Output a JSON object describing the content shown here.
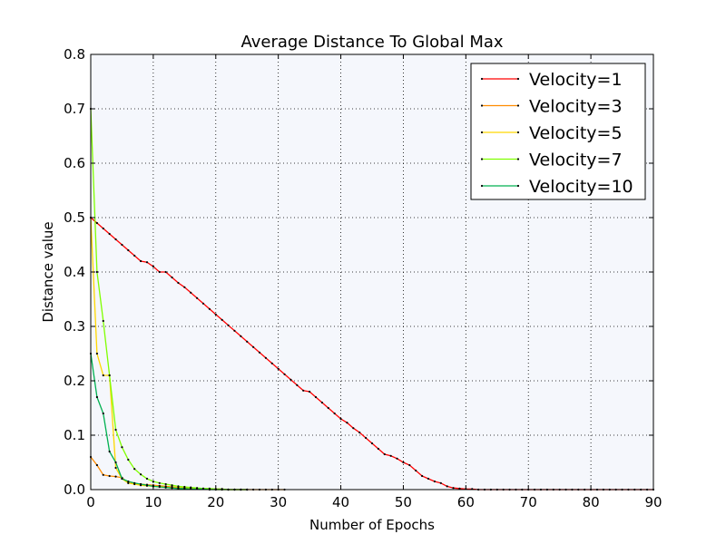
{
  "chart_data": {
    "type": "line",
    "title": "Average Distance To Global Max",
    "xlabel": "Number of Epochs",
    "ylabel": "Distance value",
    "xlim": [
      0,
      90
    ],
    "ylim": [
      0.0,
      0.8
    ],
    "xticks": [
      "0",
      "10",
      "20",
      "30",
      "40",
      "50",
      "60",
      "70",
      "80",
      "90"
    ],
    "yticks": [
      "0.0",
      "0.1",
      "0.2",
      "0.3",
      "0.4",
      "0.5",
      "0.6",
      "0.7",
      "0.8"
    ],
    "grid": true,
    "legend": "top-right",
    "plot_background": "#f5f7fc",
    "series": [
      {
        "name": "Velocity=1",
        "color": "#ff0000",
        "x": [
          0,
          1,
          2,
          3,
          4,
          5,
          6,
          7,
          8,
          9,
          10,
          11,
          12,
          13,
          14,
          15,
          16,
          17,
          18,
          19,
          20,
          21,
          22,
          23,
          24,
          25,
          26,
          27,
          28,
          29,
          30,
          31,
          32,
          33,
          34,
          35,
          36,
          37,
          38,
          39,
          40,
          41,
          42,
          43,
          44,
          45,
          46,
          47,
          48,
          49,
          50,
          51,
          52,
          53,
          54,
          55,
          56,
          57,
          58,
          59,
          60,
          61,
          62,
          63,
          64,
          65,
          66,
          67,
          68,
          69,
          70,
          71,
          72,
          73,
          74,
          75,
          76,
          77,
          78,
          79,
          80,
          81,
          82,
          83,
          84,
          85,
          86,
          87,
          88,
          89,
          90
        ],
        "y": [
          0.5,
          0.49,
          0.48,
          0.47,
          0.46,
          0.45,
          0.44,
          0.43,
          0.42,
          0.418,
          0.41,
          0.4,
          0.4,
          0.39,
          0.38,
          0.372,
          0.362,
          0.352,
          0.342,
          0.332,
          0.322,
          0.312,
          0.302,
          0.292,
          0.282,
          0.272,
          0.262,
          0.252,
          0.242,
          0.232,
          0.222,
          0.212,
          0.202,
          0.192,
          0.182,
          0.18,
          0.17,
          0.16,
          0.15,
          0.14,
          0.13,
          0.123,
          0.113,
          0.105,
          0.095,
          0.085,
          0.075,
          0.065,
          0.062,
          0.057,
          0.05,
          0.045,
          0.035,
          0.025,
          0.02,
          0.015,
          0.012,
          0.006,
          0.003,
          0.002,
          0.001,
          0.001,
          0.0,
          0.0,
          0.0,
          0.0,
          0.0,
          0.0,
          0.0,
          0.0,
          0.0,
          0.0,
          0.0,
          0.0,
          0.0,
          0.0,
          0.0,
          0.0,
          0.0,
          0.0,
          0.0,
          0.0,
          0.0,
          0.0,
          0.0,
          0.0,
          0.0,
          0.0,
          0.0,
          0.0,
          0.0
        ]
      },
      {
        "name": "Velocity=3",
        "color": "#ff8c00",
        "x": [
          0,
          1,
          2,
          3,
          4,
          5,
          6,
          7,
          8,
          9,
          10,
          11,
          12,
          13,
          14,
          15,
          16,
          17,
          18,
          19,
          20,
          21,
          22,
          23,
          24,
          25,
          26,
          27,
          28,
          29,
          30,
          31
        ],
        "y": [
          0.06,
          0.045,
          0.027,
          0.025,
          0.024,
          0.022,
          0.012,
          0.011,
          0.01,
          0.009,
          0.008,
          0.007,
          0.006,
          0.005,
          0.004,
          0.003,
          0.003,
          0.002,
          0.002,
          0.001,
          0.001,
          0.001,
          0.0,
          0.0,
          0.0,
          0.0,
          0.0,
          0.0,
          0.0,
          0.0,
          0.0,
          0.0
        ]
      },
      {
        "name": "Velocity=5",
        "color": "#ffd700",
        "x": [
          0,
          1,
          2,
          3,
          4,
          5,
          6,
          7,
          8,
          9,
          10,
          11,
          12,
          13,
          14,
          15,
          16,
          17,
          18,
          19,
          20,
          21,
          22,
          23,
          24,
          25
        ],
        "y": [
          0.5,
          0.25,
          0.21,
          0.21,
          0.04,
          0.02,
          0.012,
          0.01,
          0.008,
          0.007,
          0.006,
          0.005,
          0.004,
          0.003,
          0.003,
          0.002,
          0.002,
          0.001,
          0.001,
          0.001,
          0.0,
          0.0,
          0.0,
          0.0,
          0.0,
          0.0
        ]
      },
      {
        "name": "Velocity=7",
        "color": "#7fff00",
        "x": [
          0,
          1,
          2,
          3,
          4,
          5,
          6,
          7,
          8,
          9,
          10,
          11,
          12,
          13,
          14,
          15,
          16,
          17,
          18,
          19,
          20,
          21,
          22,
          23,
          24,
          25
        ],
        "y": [
          0.7,
          0.4,
          0.31,
          0.21,
          0.11,
          0.078,
          0.055,
          0.038,
          0.028,
          0.02,
          0.015,
          0.012,
          0.01,
          0.008,
          0.006,
          0.005,
          0.004,
          0.003,
          0.002,
          0.002,
          0.001,
          0.001,
          0.0,
          0.0,
          0.0,
          0.0
        ]
      },
      {
        "name": "Velocity=10",
        "color": "#00b050",
        "x": [
          0,
          1,
          2,
          3,
          4,
          5,
          6,
          7,
          8,
          9,
          10,
          11,
          12,
          13,
          14,
          15,
          16,
          17,
          18,
          19,
          20,
          21,
          22,
          23,
          24,
          25
        ],
        "y": [
          0.25,
          0.17,
          0.14,
          0.07,
          0.05,
          0.02,
          0.015,
          0.012,
          0.01,
          0.008,
          0.006,
          0.005,
          0.004,
          0.003,
          0.002,
          0.002,
          0.001,
          0.001,
          0.001,
          0.0,
          0.0,
          0.0,
          0.0,
          0.0,
          0.0,
          0.0
        ]
      }
    ]
  }
}
